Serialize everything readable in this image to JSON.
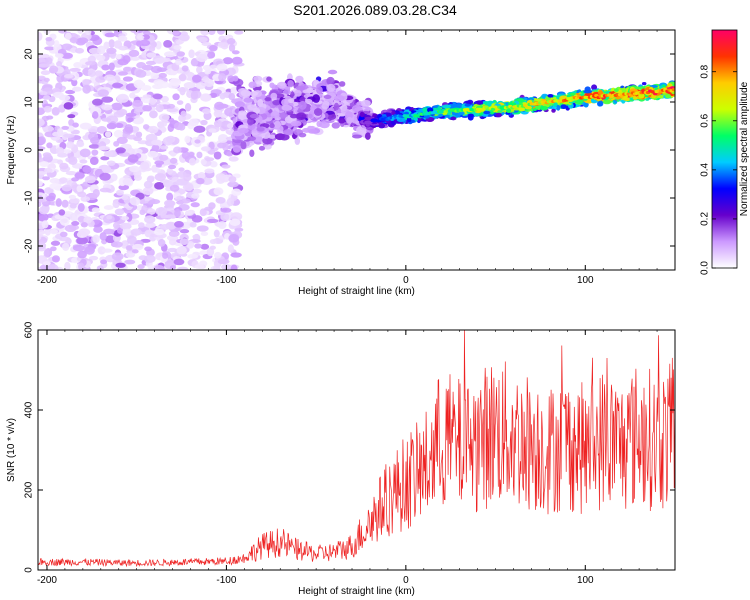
{
  "title": "S201.2026.089.03.28.C34",
  "chart_data": [
    {
      "type": "heatmap",
      "xlabel": "Height of straight line (km)",
      "ylabel": "Frequency (Hz)",
      "xlim": [
        -205,
        150
      ],
      "ylim": [
        -25,
        25
      ],
      "xticks": [
        -200,
        -100,
        0,
        100
      ],
      "yticks": [
        -20,
        -10,
        0,
        10,
        20
      ],
      "colorbar": {
        "label": "Normalized spectral amplitude",
        "range": [
          0,
          0.97
        ],
        "ticks": [
          "0.0",
          "0.2",
          "0.4",
          "0.6",
          "0.8"
        ],
        "colors": [
          "#ffffff",
          "#cc99ff",
          "#6600cc",
          "#0000ff",
          "#00ccff",
          "#00ff66",
          "#ccff00",
          "#ffcc00",
          "#ff3300",
          "#ff0066"
        ]
      },
      "ridge": {
        "x": [
          -100,
          -80,
          -60,
          -40,
          -20,
          0,
          20,
          40,
          60,
          80,
          100,
          120,
          150
        ],
        "freq": [
          5,
          7,
          9,
          10,
          6,
          7,
          8,
          8.5,
          9,
          10,
          11,
          11.5,
          12.5
        ],
        "amplitude": [
          0.25,
          0.3,
          0.35,
          0.35,
          0.3,
          0.5,
          0.6,
          0.7,
          0.72,
          0.78,
          0.85,
          0.9,
          0.95
        ]
      },
      "noise_amplitude": 0.15,
      "grid": false
    },
    {
      "type": "line",
      "xlabel": "Height of straight line (km)",
      "ylabel": "SNR (10 * v/v)",
      "xlim": [
        -205,
        150
      ],
      "ylim": [
        0,
        600
      ],
      "xticks": [
        -200,
        -100,
        0,
        100
      ],
      "yticks": [
        0,
        200,
        400,
        600
      ],
      "color": "#ee2222",
      "series": [
        {
          "x": [
            -205,
            -180,
            -160,
            -140,
            -120,
            -100,
            -90,
            -80,
            -70,
            -60,
            -50,
            -40,
            -30,
            -20,
            -10,
            0,
            10,
            20,
            30,
            40,
            50,
            60,
            70,
            80,
            90,
            100,
            110,
            120,
            130,
            140,
            150
          ],
          "values": [
            20,
            20,
            18,
            18,
            20,
            22,
            30,
            60,
            70,
            50,
            40,
            45,
            60,
            120,
            180,
            220,
            250,
            330,
            310,
            320,
            350,
            330,
            320,
            300,
            320,
            300,
            330,
            310,
            340,
            320,
            340
          ]
        }
      ],
      "grid": false
    }
  ]
}
